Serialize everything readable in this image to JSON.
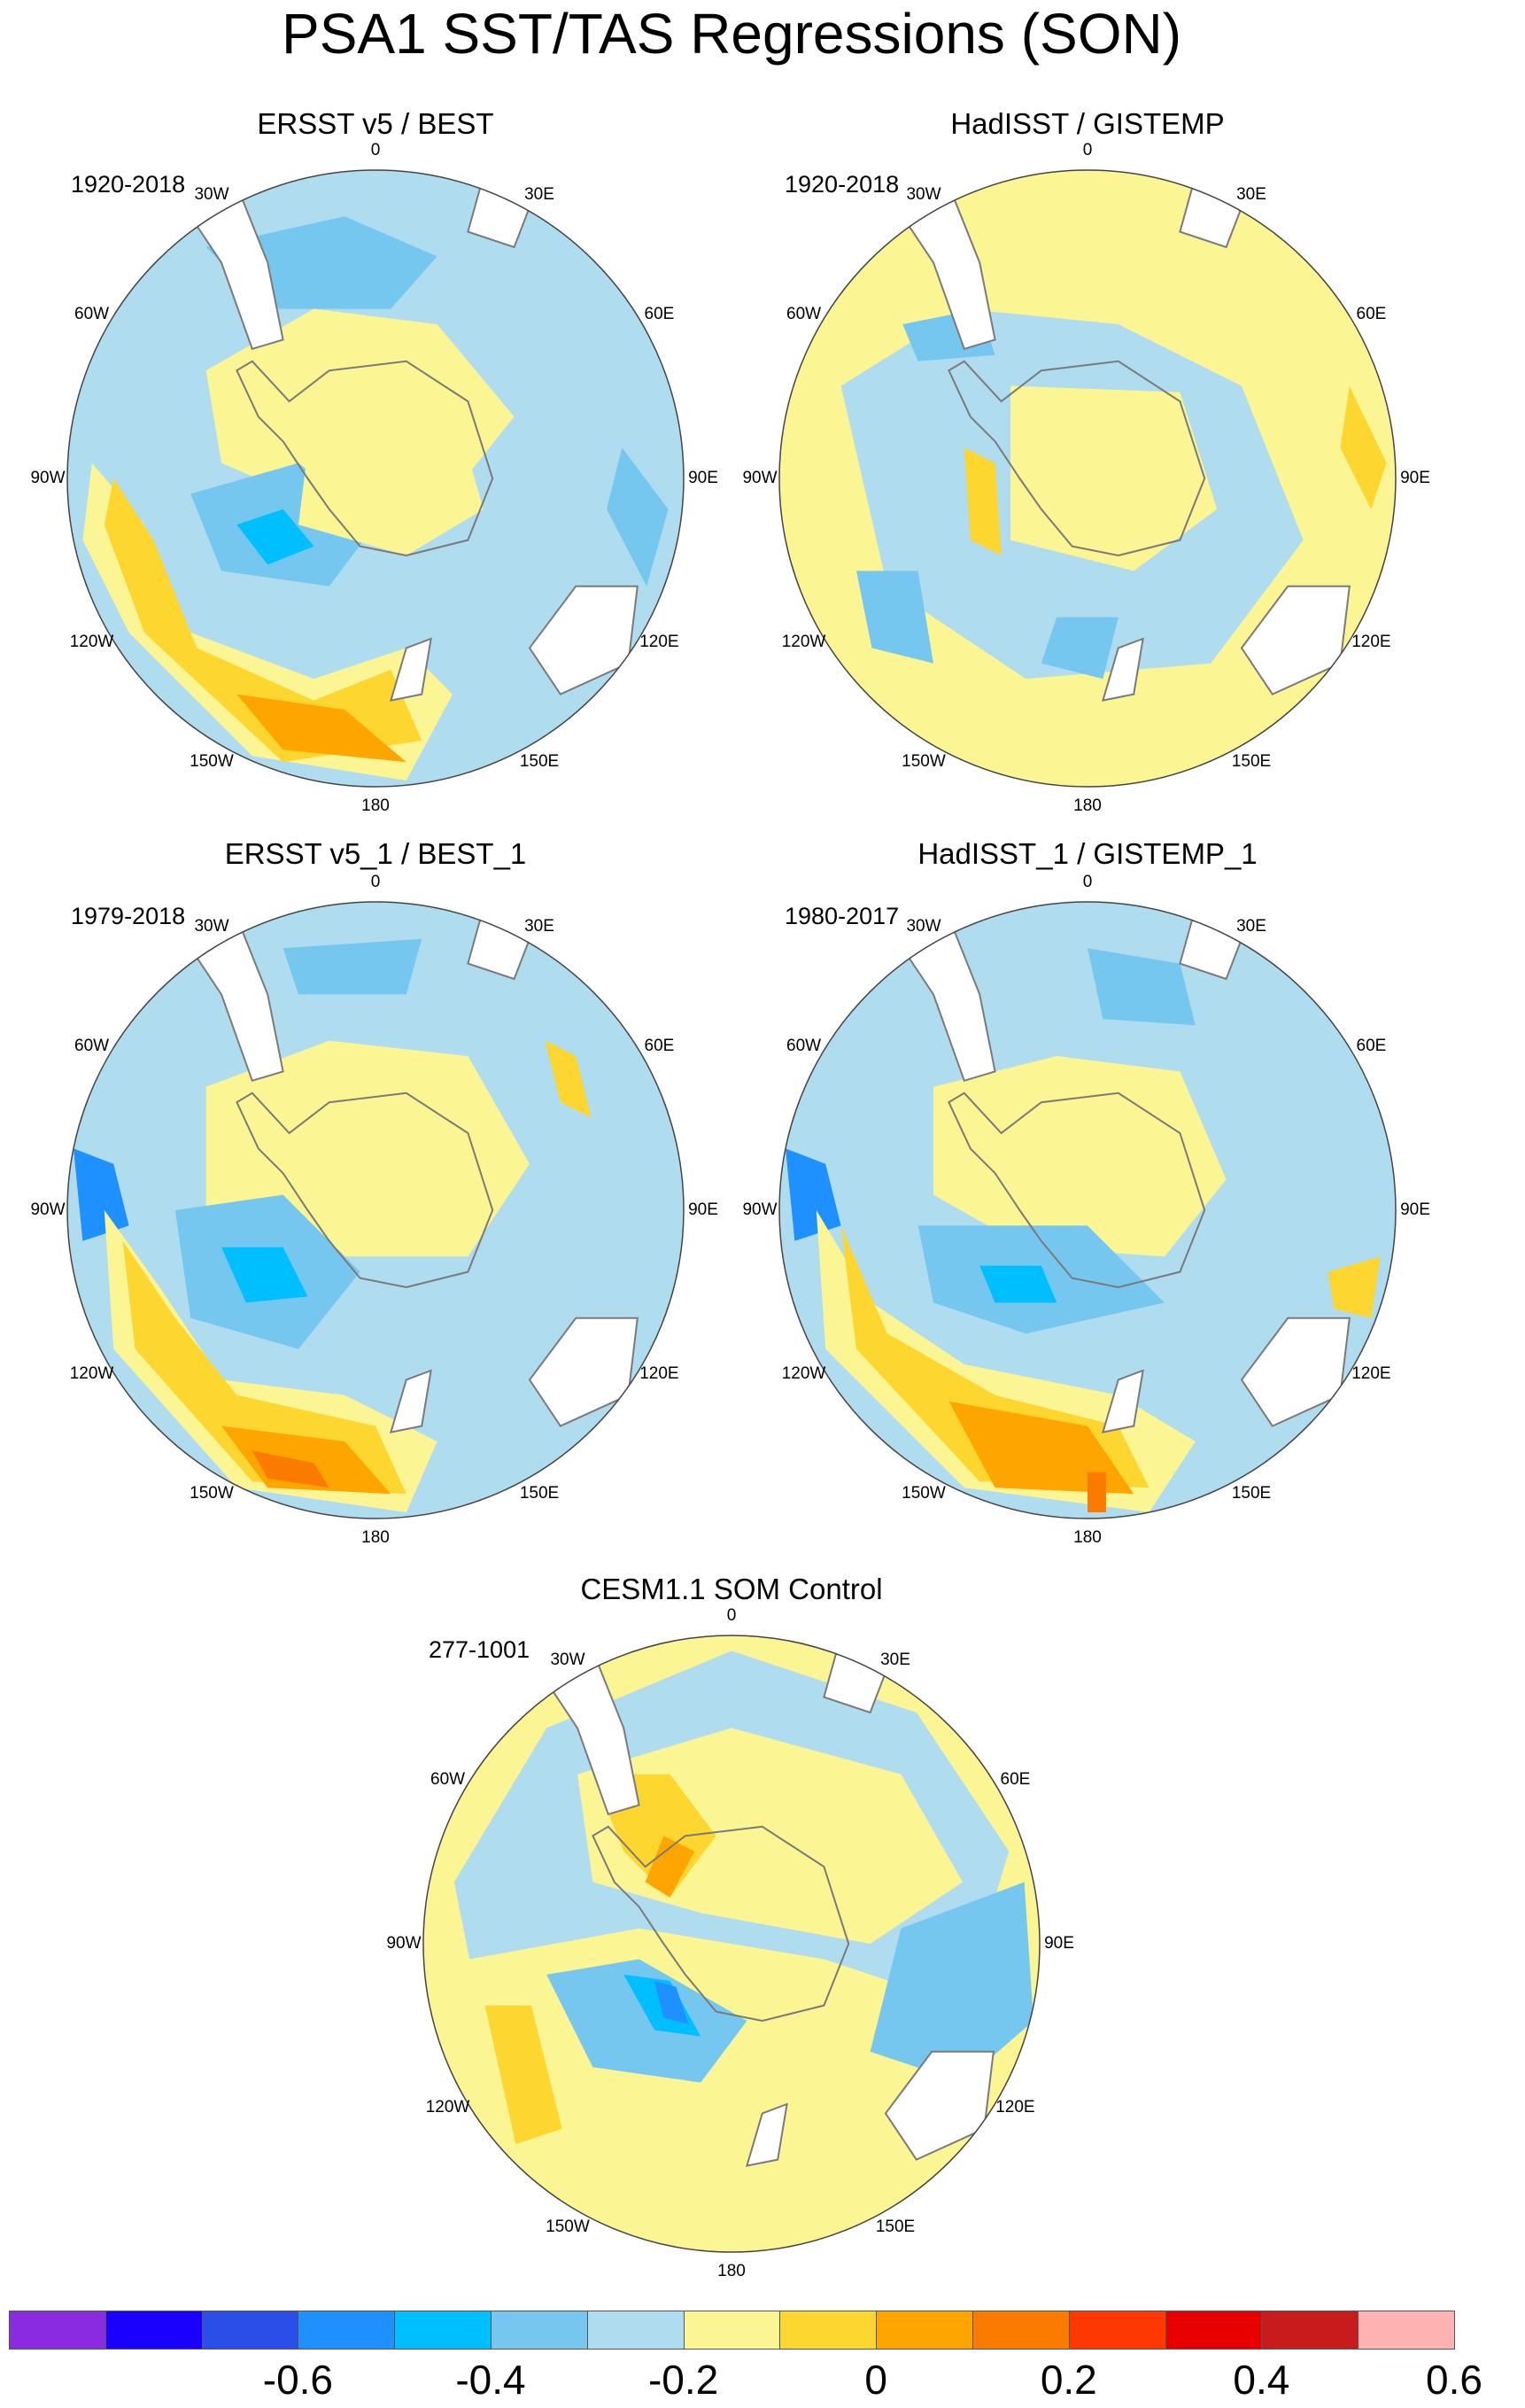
{
  "title": "PSA1 SST/TAS Regressions (SON)",
  "longitude_labels": [
    "0",
    "30E",
    "60E",
    "90E",
    "120E",
    "150E",
    "180",
    "150W",
    "120W",
    "90W",
    "60W",
    "30W"
  ],
  "panels": [
    {
      "title": "ERSST v5 / BEST",
      "period": "1920-2018",
      "background_level": 6
    },
    {
      "title": "HadISST / GISTEMP",
      "period": "1920-2018",
      "background_level": 7
    },
    {
      "title": "ERSST v5_1 / BEST_1",
      "period": "1979-2018",
      "background_level": 6
    },
    {
      "title": "HadISST_1 / GISTEMP_1",
      "period": "1980-2017",
      "background_level": 6
    },
    {
      "title": "CESM1.1 SOM Control",
      "period": "277-1001",
      "background_level": 7
    }
  ],
  "colorbar": {
    "colors": [
      "#8a2be2",
      "#1a00ff",
      "#2c4ee8",
      "#1e90ff",
      "#00bfff",
      "#75c7f0",
      "#b0dcf0",
      "#fbf593",
      "#fed630",
      "#ffa500",
      "#fb7a00",
      "#ff3700",
      "#e80000",
      "#c81b1b",
      "#ffb2b2"
    ],
    "labels": [
      "-0.6",
      "-0.4",
      "-0.2",
      "0",
      "0.2",
      "0.4",
      "0.6"
    ]
  }
}
